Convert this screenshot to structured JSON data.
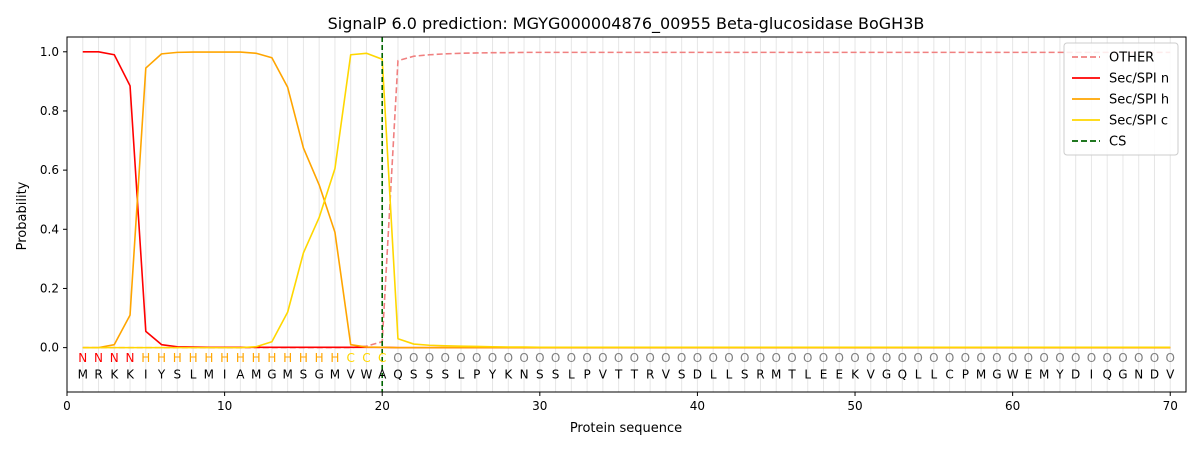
{
  "chart_data": {
    "type": "line",
    "title": "SignalP 6.0 prediction: MGYG000004876_00955 Beta-glucosidase BoGH3B",
    "xlabel": "Protein sequence",
    "ylabel": "Probability",
    "xlim": [
      0,
      71
    ],
    "ylim": [
      -0.15,
      1.05
    ],
    "x_ticks": [
      0,
      10,
      20,
      30,
      40,
      50,
      60,
      70
    ],
    "y_ticks": [
      0.0,
      0.2,
      0.4,
      0.6,
      0.8,
      1.0
    ],
    "x_tick_labels": [
      "0",
      "10",
      "20",
      "30",
      "40",
      "50",
      "60",
      "70"
    ],
    "y_tick_labels": [
      "0.0",
      "0.2",
      "0.4",
      "0.6",
      "0.8",
      "1.0"
    ],
    "grid": "vertical lines at each residue",
    "legend_position": "top-right",
    "sequence": [
      "M",
      "R",
      "K",
      "K",
      "I",
      "Y",
      "S",
      "L",
      "M",
      "I",
      "A",
      "M",
      "G",
      "M",
      "S",
      "G",
      "M",
      "V",
      "W",
      "A",
      "Q",
      "S",
      "S",
      "S",
      "L",
      "P",
      "Y",
      "K",
      "N",
      "S",
      "S",
      "L",
      "P",
      "V",
      "T",
      "T",
      "R",
      "V",
      "S",
      "D",
      "L",
      "L",
      "S",
      "R",
      "M",
      "T",
      "L",
      "E",
      "E",
      "K",
      "V",
      "G",
      "Q",
      "L",
      "L",
      "C",
      "P",
      "M",
      "G",
      "W",
      "E",
      "M",
      "Y",
      "D",
      "I",
      "Q",
      "G",
      "N",
      "D",
      "V"
    ],
    "predicted_labels": [
      "N",
      "N",
      "N",
      "N",
      "H",
      "H",
      "H",
      "H",
      "H",
      "H",
      "H",
      "H",
      "H",
      "H",
      "H",
      "H",
      "H",
      "C",
      "C",
      "C",
      "O",
      "O",
      "O",
      "O",
      "O",
      "O",
      "O",
      "O",
      "O",
      "O",
      "O",
      "O",
      "O",
      "O",
      "O",
      "O",
      "O",
      "O",
      "O",
      "O",
      "O",
      "O",
      "O",
      "O",
      "O",
      "O",
      "O",
      "O",
      "O",
      "O",
      "O",
      "O",
      "O",
      "O",
      "O",
      "O",
      "O",
      "O",
      "O",
      "O",
      "O",
      "O",
      "O",
      "O",
      "O",
      "O",
      "O",
      "O",
      "O",
      "O"
    ],
    "label_colors": {
      "N": "#ff0000",
      "H": "#ffa500",
      "C": "#ffd700",
      "O": "#808080"
    },
    "cleavage_site": 20,
    "series": [
      {
        "name": "OTHER",
        "color": "#f08080",
        "dash": "dashed",
        "values": [
          0.0,
          0.0,
          0.0,
          0.0,
          0.0,
          0.0,
          0.0,
          0.0,
          0.0,
          0.0,
          0.0,
          0.0,
          0.0,
          0.0,
          0.0,
          0.0,
          0.0,
          0.0,
          0.005,
          0.02,
          0.97,
          0.985,
          0.99,
          0.993,
          0.995,
          0.996,
          0.997,
          0.997,
          0.998,
          0.998,
          0.998,
          0.998,
          0.998,
          0.998,
          0.998,
          0.998,
          0.998,
          0.998,
          0.998,
          0.998,
          0.998,
          0.998,
          0.998,
          0.998,
          0.998,
          0.998,
          0.998,
          0.998,
          0.998,
          0.998,
          0.998,
          0.998,
          0.998,
          0.998,
          0.998,
          0.998,
          0.998,
          0.998,
          0.998,
          0.998,
          0.998,
          0.998,
          0.998,
          0.998,
          0.998,
          0.998,
          0.998,
          0.998,
          0.998,
          0.998
        ]
      },
      {
        "name": "Sec/SPI n",
        "color": "#ff0000",
        "dash": "solid",
        "values": [
          1.0,
          1.0,
          0.99,
          0.885,
          0.055,
          0.01,
          0.003,
          0.002,
          0.001,
          0.001,
          0.001,
          0.001,
          0.001,
          0.001,
          0.001,
          0.001,
          0.001,
          0.001,
          0.001,
          0.001,
          0.0,
          0.0,
          0.0,
          0.0,
          0.0,
          0.0,
          0.0,
          0.0,
          0.0,
          0.0,
          0.0,
          0.0,
          0.0,
          0.0,
          0.0,
          0.0,
          0.0,
          0.0,
          0.0,
          0.0,
          0.0,
          0.0,
          0.0,
          0.0,
          0.0,
          0.0,
          0.0,
          0.0,
          0.0,
          0.0,
          0.0,
          0.0,
          0.0,
          0.0,
          0.0,
          0.0,
          0.0,
          0.0,
          0.0,
          0.0,
          0.0,
          0.0,
          0.0,
          0.0,
          0.0,
          0.0,
          0.0,
          0.0,
          0.0,
          0.0
        ]
      },
      {
        "name": "Sec/SPI h",
        "color": "#ffa500",
        "dash": "solid",
        "values": [
          0.0,
          0.0,
          0.01,
          0.11,
          0.945,
          0.993,
          0.998,
          0.999,
          0.999,
          0.999,
          0.999,
          0.995,
          0.98,
          0.88,
          0.675,
          0.55,
          0.39,
          0.01,
          0.002,
          0.001,
          0.0,
          0.0,
          0.0,
          0.0,
          0.0,
          0.0,
          0.0,
          0.0,
          0.0,
          0.0,
          0.0,
          0.0,
          0.0,
          0.0,
          0.0,
          0.0,
          0.0,
          0.0,
          0.0,
          0.0,
          0.0,
          0.0,
          0.0,
          0.0,
          0.0,
          0.0,
          0.0,
          0.0,
          0.0,
          0.0,
          0.0,
          0.0,
          0.0,
          0.0,
          0.0,
          0.0,
          0.0,
          0.0,
          0.0,
          0.0,
          0.0,
          0.0,
          0.0,
          0.0,
          0.0,
          0.0,
          0.0,
          0.0,
          0.0,
          0.0
        ]
      },
      {
        "name": "Sec/SPI c",
        "color": "#ffd700",
        "dash": "solid",
        "values": [
          0.0,
          0.0,
          0.0,
          0.0,
          0.0,
          0.0,
          0.0,
          0.0,
          0.0,
          0.0,
          0.0,
          0.003,
          0.02,
          0.12,
          0.32,
          0.44,
          0.605,
          0.99,
          0.995,
          0.975,
          0.03,
          0.012,
          0.008,
          0.006,
          0.005,
          0.004,
          0.003,
          0.002,
          0.002,
          0.001,
          0.001,
          0.001,
          0.001,
          0.001,
          0.001,
          0.001,
          0.001,
          0.001,
          0.001,
          0.001,
          0.001,
          0.001,
          0.001,
          0.001,
          0.001,
          0.001,
          0.001,
          0.001,
          0.001,
          0.001,
          0.001,
          0.001,
          0.001,
          0.001,
          0.001,
          0.001,
          0.001,
          0.001,
          0.001,
          0.001,
          0.001,
          0.001,
          0.001,
          0.001,
          0.001,
          0.001,
          0.001,
          0.001,
          0.001,
          0.001
        ]
      }
    ],
    "legend_entries": [
      {
        "name": "OTHER",
        "color": "#f08080",
        "dash": "dashed"
      },
      {
        "name": "Sec/SPI n",
        "color": "#ff0000",
        "dash": "solid"
      },
      {
        "name": "Sec/SPI h",
        "color": "#ffa500",
        "dash": "solid"
      },
      {
        "name": "Sec/SPI c",
        "color": "#ffd700",
        "dash": "solid"
      },
      {
        "name": "CS",
        "color": "#006400",
        "dash": "dashed"
      }
    ]
  }
}
